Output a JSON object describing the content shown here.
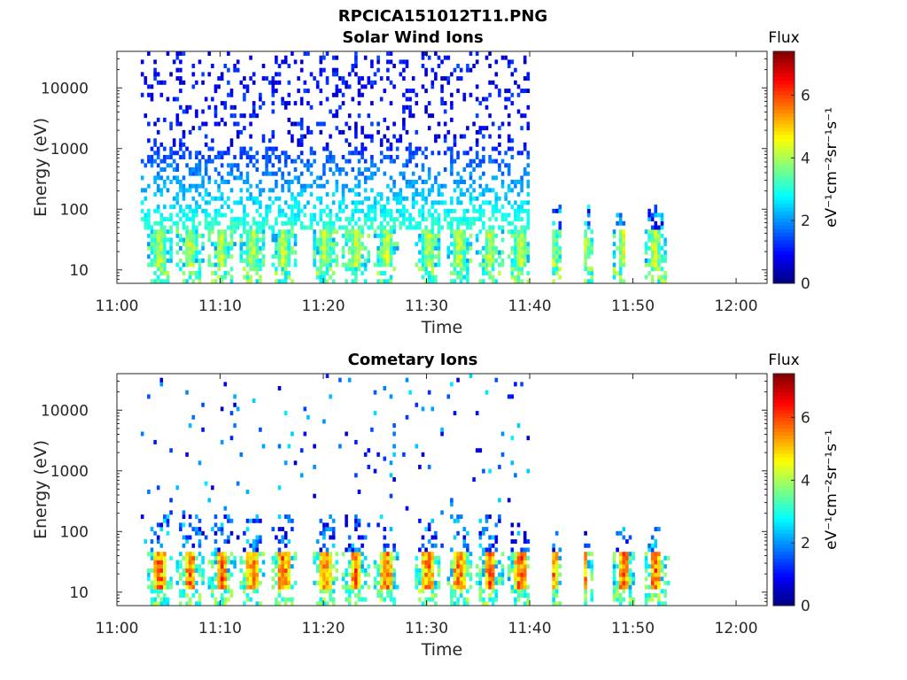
{
  "figure": {
    "title": "RPCICA151012T11.PNG"
  },
  "chart_data": [
    {
      "type": "heatmap",
      "title": "Solar Wind Ions",
      "xlabel": "Time",
      "ylabel": "Energy (eV)",
      "x_ticks": [
        "11:00",
        "11:10",
        "11:20",
        "11:30",
        "11:40",
        "11:50",
        "12:00"
      ],
      "x_range": [
        "11:00",
        "12:03"
      ],
      "y_ticks": [
        "10",
        "100",
        "1000",
        "10000"
      ],
      "y_scale": "log",
      "y_range": [
        6,
        40000
      ],
      "colorbar": {
        "title": "Flux",
        "label": "eV⁻¹cm⁻²sr⁻¹s⁻¹",
        "ticks": [
          "0",
          "2",
          "4",
          "6"
        ],
        "range": [
          0,
          7.4
        ],
        "colormap": "jet"
      },
      "observation_windows": [
        [
          "11:02",
          "11:40"
        ],
        [
          "11:42",
          "11:43"
        ],
        [
          "11:45",
          "11:46"
        ],
        [
          "11:48",
          "11:49"
        ],
        [
          "11:51",
          "11:53"
        ]
      ],
      "peak_times": [
        "11:04",
        "11:07",
        "11:10",
        "11:13",
        "11:16",
        "11:20",
        "11:23",
        "11:26",
        "11:30",
        "11:33",
        "11:36",
        "11:39",
        "11:42",
        "11:45",
        "11:49",
        "11:52"
      ],
      "peak_band_eV": [
        12,
        45
      ],
      "peak_flux": 4.9
    },
    {
      "type": "heatmap",
      "title": "Cometary Ions",
      "xlabel": "Time",
      "ylabel": "Energy (eV)",
      "x_ticks": [
        "11:00",
        "11:10",
        "11:20",
        "11:30",
        "11:40",
        "11:50",
        "12:00"
      ],
      "x_range": [
        "11:00",
        "12:03"
      ],
      "y_ticks": [
        "10",
        "100",
        "1000",
        "10000"
      ],
      "y_scale": "log",
      "y_range": [
        6,
        40000
      ],
      "colorbar": {
        "title": "Flux",
        "label": "eV⁻¹cm⁻²sr⁻¹s⁻¹",
        "ticks": [
          "0",
          "2",
          "4",
          "6"
        ],
        "range": [
          0,
          7.4
        ],
        "colormap": "jet"
      },
      "observation_windows": [
        [
          "11:02",
          "11:40"
        ],
        [
          "11:42",
          "11:43"
        ],
        [
          "11:45",
          "11:46"
        ],
        [
          "11:48",
          "11:50"
        ],
        [
          "11:51",
          "11:54"
        ]
      ],
      "peak_times": [
        "11:04",
        "11:07",
        "11:10",
        "11:13",
        "11:16",
        "11:20",
        "11:23",
        "11:26",
        "11:30",
        "11:33",
        "11:36",
        "11:39",
        "11:42",
        "11:45",
        "11:49",
        "11:52"
      ],
      "peak_band_eV": [
        12,
        45
      ],
      "peak_flux": 6.6
    }
  ]
}
